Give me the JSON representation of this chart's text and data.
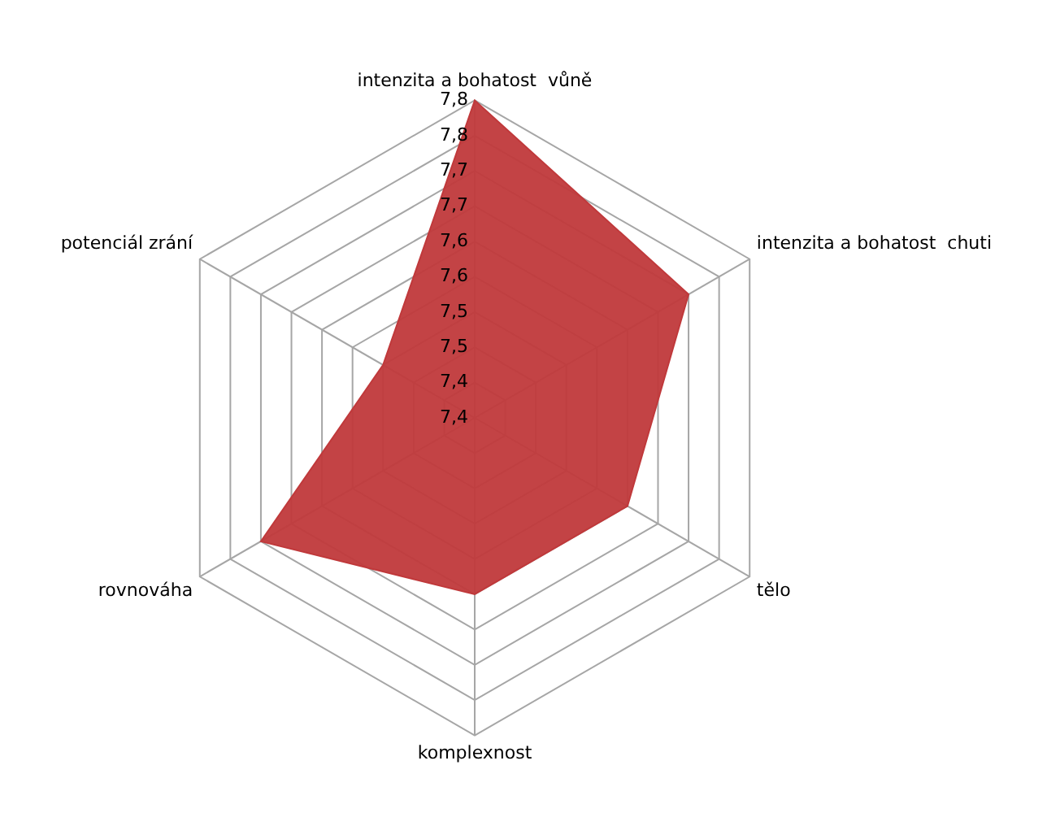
{
  "chart_data": {
    "type": "radar",
    "categories": [
      "intenzita a bohatost  vůně",
      "intenzita a bohatost  chuti",
      "tělo",
      "komplexnost",
      "rovnováha",
      "potenciál zrání"
    ],
    "series": [
      {
        "color": "#c0393b",
        "values": [
          7.8,
          7.7,
          7.6,
          7.6,
          7.7,
          7.5
        ]
      }
    ],
    "ylim": [
      7.35,
      7.8
    ],
    "yticks": [
      {
        "value": 7.35,
        "label": "7,4"
      },
      {
        "value": 7.4,
        "label": "7,4"
      },
      {
        "value": 7.45,
        "label": "7,5"
      },
      {
        "value": 7.5,
        "label": "7,5"
      },
      {
        "value": 7.55,
        "label": "7,6"
      },
      {
        "value": 7.6,
        "label": "7,6"
      },
      {
        "value": 7.65,
        "label": "7,7"
      },
      {
        "value": 7.7,
        "label": "7,7"
      },
      {
        "value": 7.75,
        "label": "7,8"
      },
      {
        "value": 7.8,
        "label": "7,8"
      }
    ],
    "grid": true,
    "legend": false
  }
}
